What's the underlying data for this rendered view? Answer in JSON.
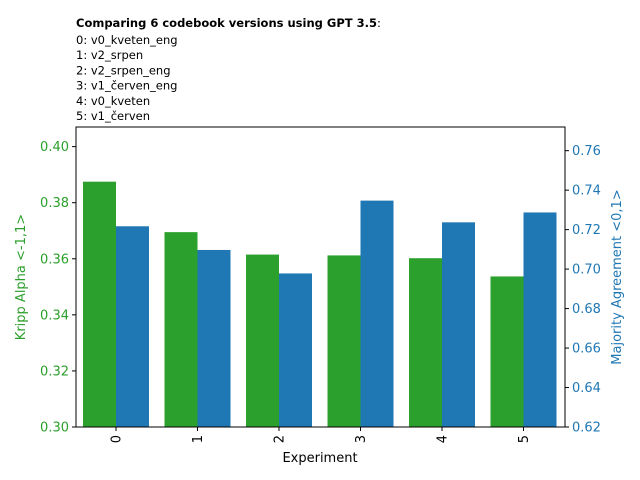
{
  "header": {
    "title_bold": "Comparing 6 codebook versions using GPT 3.5",
    "title_suffix": ":",
    "lines": [
      "0: v0_kveten_eng",
      "1: v2_srpen",
      "2: v2_srpen_eng",
      "3: v1_červen_eng",
      "4: v0_kveten",
      "5: v1_červen"
    ]
  },
  "chart_data": {
    "type": "bar",
    "categories": [
      "0",
      "1",
      "2",
      "3",
      "4",
      "5"
    ],
    "xlabel": "Experiment",
    "series": [
      {
        "name": "Kripp Alpha <-1,1>",
        "axis": "left",
        "color": "#2ca02c",
        "values": [
          0.3875,
          0.3695,
          0.3615,
          0.3612,
          0.3602,
          0.3537
        ]
      },
      {
        "name": "Majority Agreement <0,1>",
        "axis": "right",
        "color": "#1f77b4",
        "values": [
          0.7217,
          0.7097,
          0.6978,
          0.7347,
          0.7237,
          0.7287
        ]
      }
    ],
    "left_axis": {
      "label": "Kripp Alpha <-1,1>",
      "range": [
        0.3,
        0.407
      ],
      "ticks": [
        "0.30",
        "0.32",
        "0.34",
        "0.36",
        "0.38",
        "0.40"
      ],
      "color": "#2ca02c"
    },
    "right_axis": {
      "label": "Majority Agreement <0,1>",
      "range": [
        0.62,
        0.772
      ],
      "ticks": [
        "0.62",
        "0.64",
        "0.66",
        "0.68",
        "0.70",
        "0.72",
        "0.74",
        "0.76"
      ],
      "color": "#1f77b4"
    },
    "grid": false
  }
}
